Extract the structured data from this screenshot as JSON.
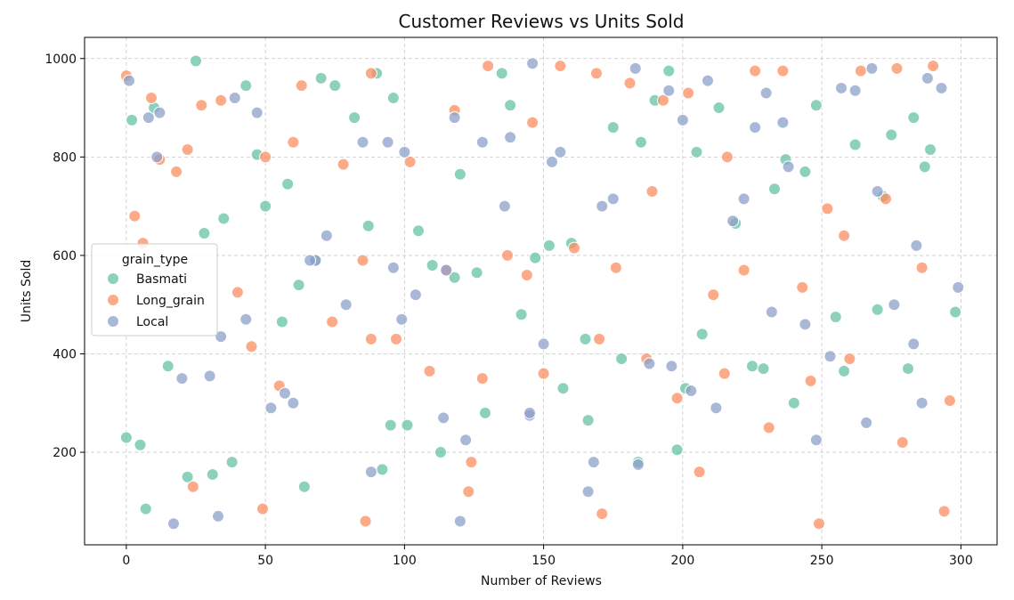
{
  "chart_data": {
    "type": "scatter",
    "title": "Customer Reviews vs Units Sold",
    "xlabel": "Number of Reviews",
    "ylabel": "Units Sold",
    "xlim": [
      -15,
      313
    ],
    "ylim": [
      12,
      1043
    ],
    "xticks": [
      0,
      50,
      100,
      150,
      200,
      250,
      300
    ],
    "yticks": [
      200,
      400,
      600,
      800,
      1000
    ],
    "grid": true,
    "grid_style": "dashed",
    "legend": {
      "title": "grain_type",
      "position": "center-left"
    },
    "series": [
      {
        "name": "Basmati",
        "color": "#66c2a5",
        "x": [
          0,
          2,
          7,
          25,
          35,
          43,
          50,
          62,
          70,
          75,
          90,
          96,
          110,
          120,
          135,
          147,
          160,
          175,
          185,
          195,
          205,
          213,
          225,
          237,
          248,
          262,
          272,
          283,
          289,
          15,
          28,
          47,
          56,
          68,
          82,
          95,
          105,
          113,
          126,
          138,
          152,
          165,
          178,
          190,
          201,
          219,
          233,
          244,
          258,
          270,
          287,
          298,
          10,
          22,
          38,
          58,
          87,
          101,
          118,
          142,
          166,
          184,
          207,
          229,
          255,
          275,
          5,
          31,
          64,
          92,
          129,
          157,
          198,
          240,
          281
        ],
        "y": [
          230,
          875,
          85,
          995,
          675,
          945,
          700,
          540,
          960,
          945,
          970,
          920,
          580,
          765,
          970,
          595,
          625,
          860,
          830,
          975,
          810,
          900,
          375,
          795,
          905,
          825,
          720,
          880,
          815,
          375,
          645,
          805,
          465,
          590,
          880,
          255,
          650,
          200,
          565,
          905,
          620,
          430,
          390,
          915,
          330,
          665,
          735,
          770,
          365,
          490,
          780,
          485,
          900,
          150,
          180,
          745,
          660,
          255,
          555,
          480,
          265,
          180,
          440,
          370,
          475,
          845,
          215,
          155,
          130,
          165,
          280,
          330,
          205,
          300,
          370
        ]
      },
      {
        "name": "Long_grain",
        "color": "#fc8d62",
        "x": [
          0,
          3,
          9,
          22,
          34,
          50,
          63,
          78,
          88,
          102,
          118,
          130,
          146,
          156,
          169,
          181,
          193,
          202,
          216,
          226,
          236,
          252,
          264,
          277,
          290,
          12,
          27,
          45,
          60,
          85,
          97,
          115,
          128,
          144,
          161,
          176,
          189,
          211,
          222,
          243,
          258,
          273,
          286,
          18,
          40,
          55,
          74,
          88,
          109,
          124,
          137,
          150,
          170,
          187,
          198,
          215,
          231,
          246,
          260,
          279,
          296,
          6,
          24,
          49,
          86,
          123,
          171,
          206,
          249,
          294
        ],
        "y": [
          965,
          680,
          920,
          815,
          915,
          800,
          945,
          785,
          970,
          790,
          895,
          985,
          870,
          985,
          970,
          950,
          915,
          930,
          800,
          975,
          975,
          695,
          975,
          980,
          985,
          795,
          905,
          415,
          830,
          590,
          430,
          570,
          350,
          560,
          615,
          575,
          730,
          520,
          570,
          535,
          640,
          715,
          575,
          770,
          525,
          335,
          465,
          430,
          365,
          180,
          600,
          360,
          430,
          390,
          310,
          360,
          250,
          345,
          390,
          220,
          305,
          625,
          130,
          85,
          60,
          120,
          75,
          160,
          55,
          80
        ]
      },
      {
        "name": "Local",
        "color": "#8da0cb",
        "x": [
          1,
          12,
          30,
          47,
          60,
          72,
          96,
          104,
          114,
          128,
          136,
          146,
          156,
          175,
          183,
          195,
          209,
          222,
          236,
          248,
          262,
          276,
          284,
          20,
          34,
          52,
          68,
          85,
          100,
          122,
          138,
          150,
          168,
          184,
          200,
          218,
          238,
          253,
          270,
          288,
          8,
          43,
          57,
          79,
          99,
          118,
          145,
          171,
          196,
          226,
          244,
          266,
          293,
          17,
          33,
          88,
          120,
          145,
          166,
          203,
          232,
          268,
          283,
          11,
          39,
          66,
          94,
          115,
          153,
          188,
          212,
          230,
          257,
          286,
          299
        ],
        "y": [
          955,
          890,
          355,
          890,
          300,
          640,
          575,
          520,
          270,
          830,
          700,
          990,
          810,
          715,
          980,
          935,
          955,
          715,
          870,
          225,
          935,
          500,
          620,
          350,
          435,
          290,
          590,
          830,
          810,
          225,
          840,
          420,
          180,
          175,
          875,
          670,
          780,
          395,
          730,
          960,
          880,
          470,
          320,
          500,
          470,
          880,
          275,
          700,
          375,
          860,
          460,
          260,
          940,
          55,
          70,
          160,
          60,
          280,
          120,
          325,
          485,
          980,
          420,
          800,
          920,
          590,
          830,
          570,
          790,
          380,
          290,
          930,
          940,
          300,
          535
        ]
      }
    ]
  }
}
